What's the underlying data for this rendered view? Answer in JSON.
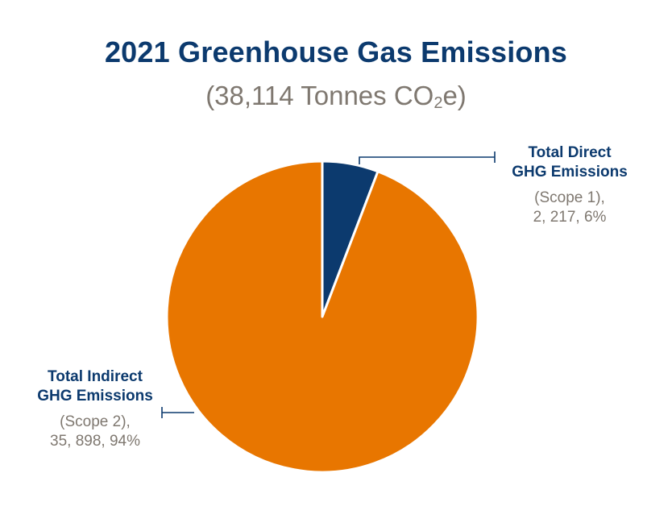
{
  "chart_data": {
    "type": "pie",
    "title": "2021 Greenhouse Gas Emissions",
    "subtitle_prefix": "(38,114 Tonnes CO",
    "subtitle_sub": "2",
    "subtitle_suffix": "e)",
    "slices": [
      {
        "name_line1": "Total Direct",
        "name_line2": "GHG Emissions",
        "detail_line1": "(Scope 1),",
        "detail_line2": "2, 217, 6%",
        "value": 2217,
        "percent": 6,
        "color": "#0c3a6e"
      },
      {
        "name_line1": "Total Indirect",
        "name_line2": "GHG Emissions",
        "detail_line1": "(Scope 2),",
        "detail_line2": "35, 898, 94%",
        "value": 35898,
        "percent": 94,
        "color": "#e87600"
      }
    ]
  }
}
